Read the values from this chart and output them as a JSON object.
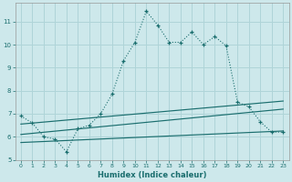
{
  "background_color": "#cde8eb",
  "grid_color": "#afd4d8",
  "line_color": "#1a6e6e",
  "xlabel": "Humidex (Indice chaleur)",
  "xlim": [
    -0.5,
    23.5
  ],
  "ylim": [
    5,
    11.8
  ],
  "xticks": [
    0,
    1,
    2,
    3,
    4,
    5,
    6,
    7,
    8,
    9,
    10,
    11,
    12,
    13,
    14,
    15,
    16,
    17,
    18,
    19,
    20,
    21,
    22,
    23
  ],
  "yticks": [
    5,
    6,
    7,
    8,
    9,
    10,
    11
  ],
  "main_series": {
    "x": [
      0,
      1,
      2,
      3,
      4,
      5,
      6,
      7,
      8,
      9,
      10,
      11,
      12,
      13,
      14,
      15,
      16,
      17,
      18,
      19,
      20,
      21,
      22,
      23
    ],
    "y": [
      6.9,
      6.6,
      6.0,
      5.9,
      5.35,
      6.35,
      6.5,
      7.0,
      7.85,
      9.3,
      10.1,
      11.45,
      10.85,
      10.1,
      10.1,
      10.55,
      10.0,
      10.35,
      9.95,
      7.5,
      7.3,
      6.65,
      6.2,
      6.2
    ]
  },
  "trend_lines": [
    {
      "x": [
        0,
        23
      ],
      "y": [
        6.55,
        7.55
      ]
    },
    {
      "x": [
        0,
        23
      ],
      "y": [
        6.1,
        7.2
      ]
    },
    {
      "x": [
        0,
        23
      ],
      "y": [
        5.75,
        6.25
      ]
    }
  ]
}
